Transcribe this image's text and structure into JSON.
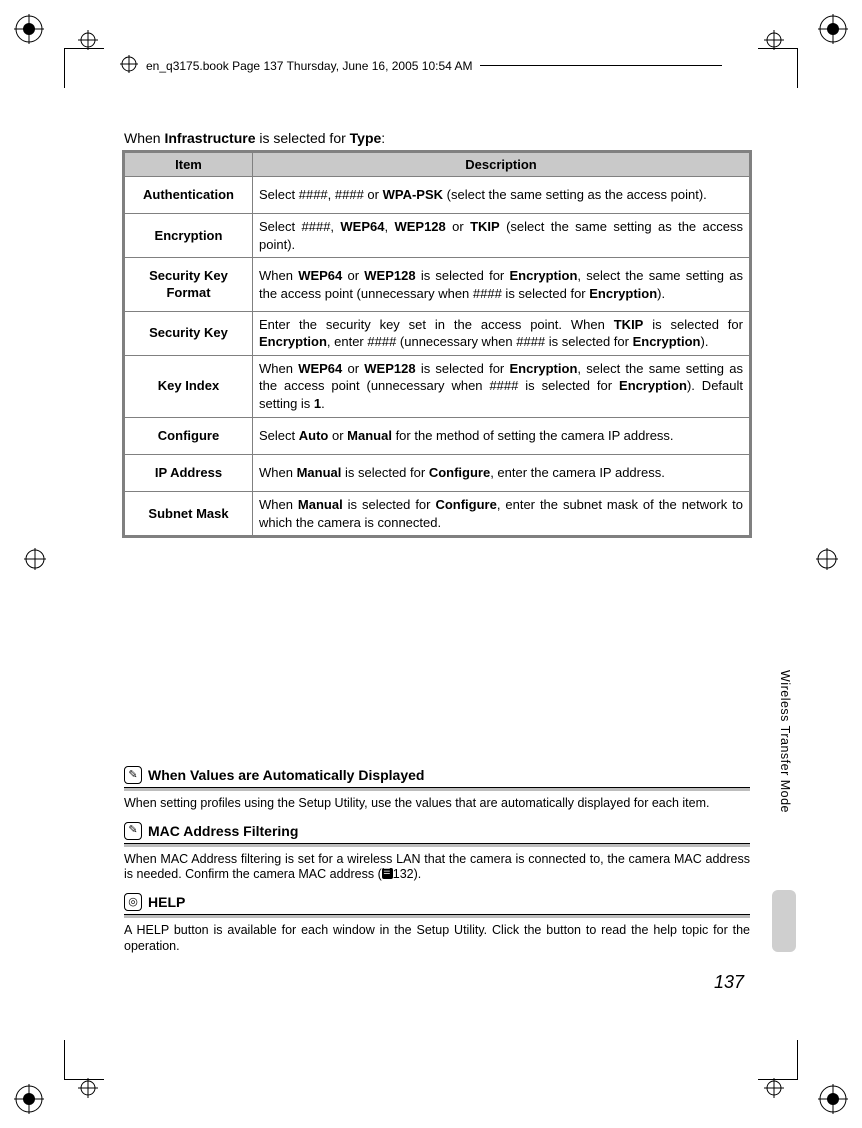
{
  "running_header": "en_q3175.book  Page 137  Thursday, June 16, 2005  10:54 AM",
  "intro": {
    "pre": "When ",
    "b1": "Infrastructure",
    "mid": " is selected for ",
    "b2": "Type",
    "post": ":"
  },
  "table": {
    "head": {
      "item": "Item",
      "desc": "Description"
    },
    "rows": [
      {
        "item": "Authentication",
        "desc_html": "Select ####, #### or <b>WPA-PSK</b> (select the same setting as the access point)."
      },
      {
        "item": "Encryption",
        "desc_html": "Select ####, <b>WEP64</b>, <b>WEP128</b> or <b>TKIP</b> (select the same setting as the access point)."
      },
      {
        "item": "Security Key Format",
        "desc_html": "When <b>WEP64</b> or <b>WEP128</b> is selected for <b>Encryption</b>, select the same setting as the access point (unnecessary when #### is selected for <b>Encryption</b>)."
      },
      {
        "item": "Security Key",
        "desc_html": "Enter the security key set in the access point. When <b>TKIP</b> is selected for <b>Encryption</b>, enter #### (unnecessary when #### is selected for <b>Encryption</b>)."
      },
      {
        "item": "Key Index",
        "desc_html": "When <b>WEP64</b> or <b>WEP128</b> is selected for <b>Encryption</b>, select the same setting as the access point (unnecessary when #### is selected for <b>Encryption</b>). Default setting is <b>1</b>."
      },
      {
        "item": "Configure",
        "desc_html": "Select <b>Auto</b> or <b>Manual</b> for the method of setting the camera IP address."
      },
      {
        "item": "IP Address",
        "desc_html": "When <b>Manual</b> is selected for <b>Configure</b>, enter the camera IP address."
      },
      {
        "item": "Subnet Mask",
        "desc_html": "When <b>Manual</b> is selected for <b>Configure</b>, enter the subnet mask of the network to which the camera is connected."
      }
    ]
  },
  "notes": [
    {
      "icon": "pencil",
      "title": "When Values are Automatically Displayed",
      "body": "When setting profiles using the Setup Utility, use the values that are automatically displayed for each item."
    },
    {
      "icon": "pencil",
      "title": "MAC Address Filtering",
      "body_html": "When MAC Address filtering is set for a wireless LAN that the camera is connected to, the camera MAC address is needed. Confirm the camera MAC address (<span class='ref-sq'></span>132)."
    },
    {
      "icon": "magnify",
      "title": "HELP",
      "body": "A HELP button is available for each window in the Setup Utility. Click the button to read the help topic for the operation."
    }
  ],
  "side_tab": "Wireless Transfer Mode",
  "page_number": "137",
  "colors": {
    "header_bg": "#c9c9c9",
    "border": "#808080",
    "thumb": "#cfcfcf",
    "rule_gray": "#bdbdbd"
  }
}
